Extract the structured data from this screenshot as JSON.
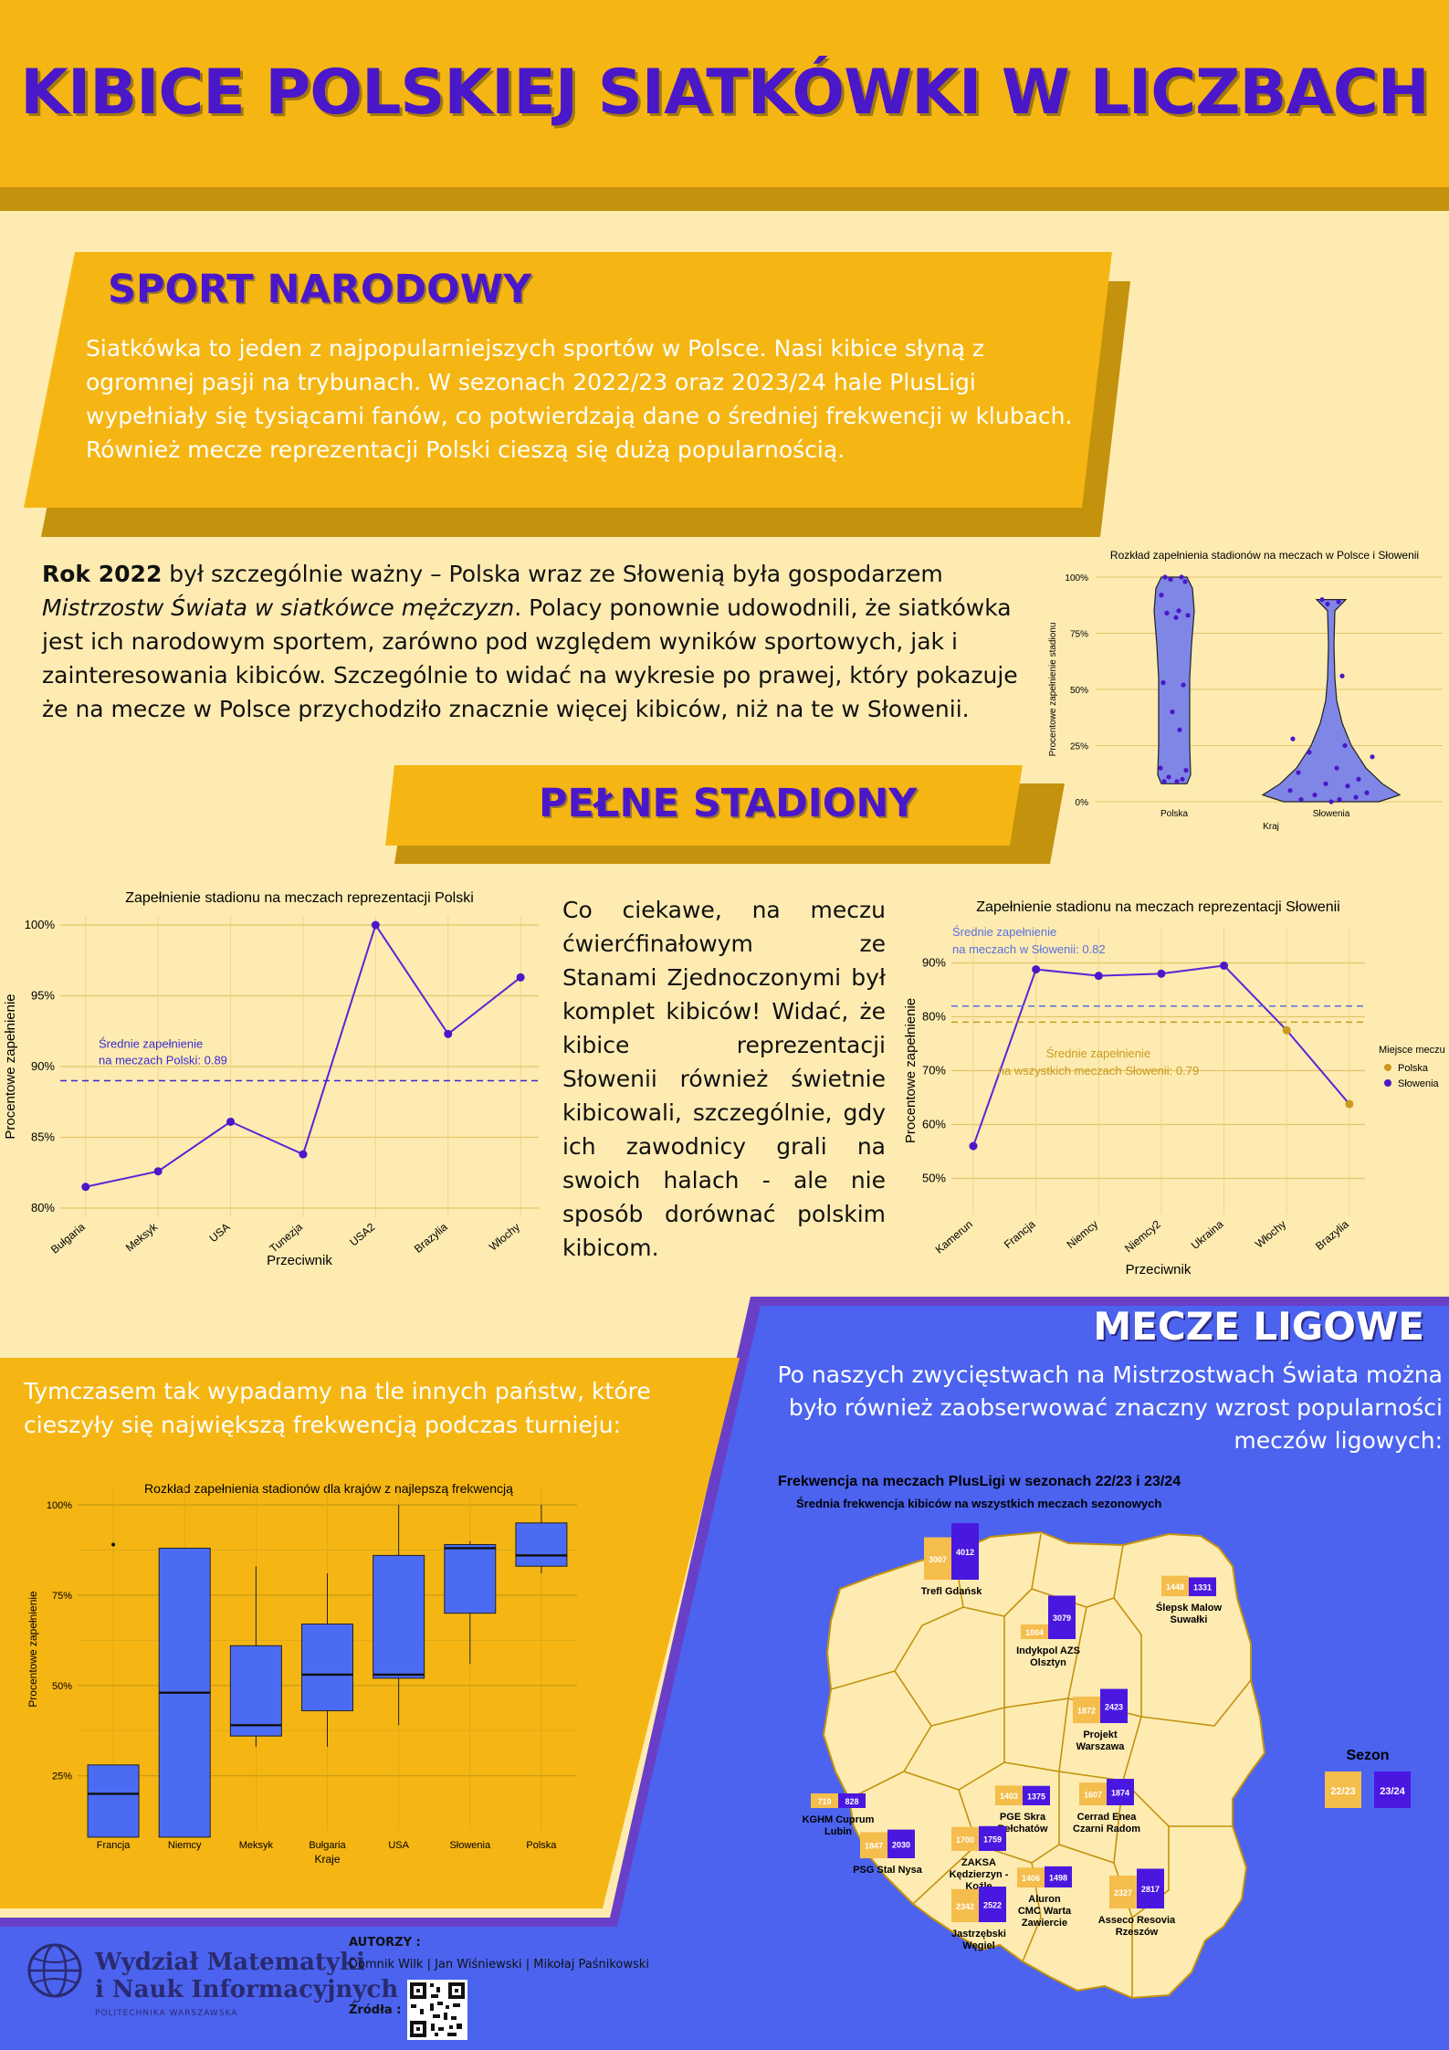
{
  "header": {
    "title": "KIBICE POLSKIEJ SIATKÓWKI W LICZBACH"
  },
  "sport_narodowy": {
    "title": "SPORT NARODOWY",
    "text": "Siatkówka to jeden z najpopularniejszych sportów w Polsce. Nasi kibice słyną z ogromnej pasji na trybunach. W sezonach 2022/23 oraz 2023/24 hale PlusLigi wypełniały się tysiącami fanów, co potwierdzają dane o średniej frekwencji w klubach. Również mecze reprezentacji Polski cieszą się dużą popularnością."
  },
  "rok2022": {
    "bold": "Rok 2022",
    "t1": " był szczególnie ważny – Polska wraz ze Słowenią była gospodarzem ",
    "italic": "Mistrzostw Świata w siatkówce mężczyzn",
    "t2": ". Polacy ponownie udowodnili, że siatkówka jest ich narodowym sportem, zarówno pod względem wyników sportowych, jak i zainteresowania kibiców. Szczególnie to widać na wykresie po prawej, który pokazuje że na mecze w Polsce przychodziło znacznie więcej kibiców, niż na te w Słowenii."
  },
  "pelne_stadiony": {
    "title": "PEŁNE STADIONY"
  },
  "ciekawe": {
    "text": "Co ciekawe, na meczu ćwierćfinałowym ze Stanami Zjednoczonymi był komplet kibiców! Widać, że kibice reprezentacji Słowenii również świetnie kibicowali, szczególnie, gdy ich zawodnicy grali na swoich halach - ale nie sposób dorównać polskim kibicom."
  },
  "tymczasem": {
    "text": "Tymczasem tak wypadamy na tle innych państw, które cieszyły się największą frekwencją podczas turnieju:"
  },
  "mecze_ligowe": {
    "title": "MECZE LIGOWE",
    "text": "Po naszych zwycięstwach na Mistrzostwach Świata można było również zaobserwować znaczny wzrost popularności meczów ligowych:"
  },
  "footer": {
    "logo_line1": "Wydział Matematyki",
    "logo_line2": "i Nauk Informacyjnych",
    "logo_sub": "POLITECHNIKA WARSZAWSKA",
    "authors_label": "AUTORZY :",
    "authors": "Domnik Wilk | Jan Wiśniewski | Mikołaj Paśnikowski",
    "sources_label": "Źródła :"
  },
  "colors": {
    "yellow": "#f5b614",
    "dark_yellow": "#c4920d",
    "cream": "#fdebb1",
    "blue": "#4b63ef",
    "purple": "#4a17c9",
    "violet_line": "#5b24d6"
  },
  "chart_data": [
    {
      "id": "violin",
      "type": "violin",
      "title": "Rozkład zapełnienia stadionów na meczach w Polsce i Słowenii",
      "xlabel": "Kraj",
      "ylabel": "Procentowe zapełnienie stadionu",
      "categories": [
        "Polska",
        "Słowenia"
      ],
      "yticks": [
        "0%",
        "25%",
        "50%",
        "75%",
        "100%"
      ],
      "ylim": [
        0,
        100
      ],
      "points": {
        "Polska": [
          100,
          100,
          99,
          98,
          92,
          85,
          84,
          83,
          82,
          53,
          52,
          40,
          32,
          15,
          14,
          11,
          10,
          9,
          9
        ],
        "Słowenia": [
          90,
          89,
          88,
          56,
          28,
          25,
          22,
          20,
          15,
          13,
          10,
          8,
          7,
          5,
          4,
          3,
          2,
          1,
          1,
          0
        ]
      }
    },
    {
      "id": "polska_line",
      "type": "line",
      "title": "Zapełnienie stadionu na meczach reprezentacji Polski",
      "xlabel": "Przeciwnik",
      "ylabel": "Procentowe zapełnienie",
      "categories": [
        "Bułgaria",
        "Meksyk",
        "USA",
        "Tunezja",
        "USA2",
        "Brazylia",
        "Włochy"
      ],
      "values": [
        81.5,
        82.6,
        86.1,
        83.8,
        100,
        92.3,
        96.3
      ],
      "ylim": [
        80,
        100
      ],
      "yticks": [
        "80%",
        "85%",
        "90%",
        "95%",
        "100%"
      ],
      "mean": 0.89,
      "mean_label_1": "Średnie zapełnienie",
      "mean_label_2": "na meczach Polski: 0.89"
    },
    {
      "id": "slowenia_line",
      "type": "line",
      "title": "Zapełnienie stadionu na meczach reprezentacji Słowenii",
      "xlabel": "Przeciwnik",
      "ylabel": "Procentowe zapełnienie",
      "categories": [
        "Kamerun",
        "Francja",
        "Niemcy",
        "Niemcy2",
        "Ukraina",
        "Włochy",
        "Brazylia"
      ],
      "values": [
        56,
        88.8,
        87.6,
        88,
        89.5,
        77.5,
        63.8
      ],
      "location": [
        "Słowenia",
        "Słowenia",
        "Słowenia",
        "Słowenia",
        "Słowenia",
        "Polska",
        "Polska"
      ],
      "ylim": [
        45,
        95
      ],
      "yticks": [
        "50%",
        "60%",
        "70%",
        "80%",
        "90%"
      ],
      "mean_slo": 0.82,
      "mean_all": 0.79,
      "mean_slo_label_1": "Średnie zapełnienie",
      "mean_slo_label_2": "na meczach w Słowenii: 0.82",
      "mean_all_label_1": "Średnie zapełnienie",
      "mean_all_label_2": "na wszystkich meczach Słowenii: 0.79",
      "legend_title": "Miejsce meczu",
      "legend": [
        "Polska",
        "Słowenia"
      ]
    },
    {
      "id": "boxplot",
      "type": "box",
      "title": "Rozkład zapełnienia stadionów dla krajów z najlepszą frekwencją",
      "xlabel": "Kraje",
      "ylabel": "Procentowe zapełnienie",
      "ylim": [
        10,
        100
      ],
      "yticks": [
        "25%",
        "50%",
        "75%",
        "100%"
      ],
      "boxes": [
        {
          "name": "Francja",
          "min": 8,
          "q1": 8,
          "median": 20,
          "q3": 28,
          "max": 28,
          "outliers": [
            89
          ]
        },
        {
          "name": "Niemcy",
          "min": 8,
          "q1": 8,
          "median": 48,
          "q3": 88,
          "max": 88,
          "outliers": []
        },
        {
          "name": "Meksyk",
          "min": 33,
          "q1": 36,
          "median": 39,
          "q3": 61,
          "max": 83,
          "outliers": []
        },
        {
          "name": "Bułgaria",
          "min": 33,
          "q1": 43,
          "median": 53,
          "q3": 67,
          "max": 81,
          "outliers": []
        },
        {
          "name": "USA",
          "min": 39,
          "q1": 52,
          "median": 53,
          "q3": 86,
          "max": 100,
          "outliers": []
        },
        {
          "name": "Słowenia",
          "min": 56,
          "q1": 70,
          "median": 88,
          "q3": 89,
          "max": 90,
          "outliers": []
        },
        {
          "name": "Polska",
          "min": 81,
          "q1": 83,
          "median": 86,
          "q3": 95,
          "max": 100,
          "outliers": []
        }
      ]
    },
    {
      "id": "map",
      "type": "map-bars",
      "title": "Frekwencja na meczach PlusLigi w sezonach 22/23 i 23/24",
      "subtitle": "Średnia frekwencja kibiców na wszystkich meczach sezonowych",
      "legend_title": "Sezon",
      "legend": [
        "22/23",
        "23/24"
      ],
      "clubs": [
        {
          "name": "Trefl Gdańsk",
          "v2223": 3007,
          "v2324": 4012
        },
        {
          "name": "Indykpol AZS Olsztyn",
          "v2223": 1004,
          "v2324": 3079
        },
        {
          "name": "Ślepsk Malow Suwałki",
          "v2223": 1448,
          "v2324": 1331
        },
        {
          "name": "Projekt Warszawa",
          "v2223": 1872,
          "v2324": 2423
        },
        {
          "name": "KGHM Cuprum Lubin",
          "v2223": 719,
          "v2324": 828
        },
        {
          "name": "PGE Skra Bełchatów",
          "v2223": 1403,
          "v2324": 1375
        },
        {
          "name": "Cerrad Enea Czarni Radom",
          "v2223": 1607,
          "v2324": 1874
        },
        {
          "name": "PSG Stal Nysa",
          "v2223": 1847,
          "v2324": 2030
        },
        {
          "name": "ZAKSA Kędzierzyn - Koźle",
          "v2223": 1700,
          "v2324": 1759
        },
        {
          "name": "Aluron CMC Warta Zawiercie",
          "v2223": 1406,
          "v2324": 1498
        },
        {
          "name": "Jastrzębski Węgiel",
          "v2223": 2342,
          "v2324": 2522
        },
        {
          "name": "Asseco Resovia Rzeszów",
          "v2223": 2327,
          "v2324": 2817
        }
      ]
    }
  ]
}
